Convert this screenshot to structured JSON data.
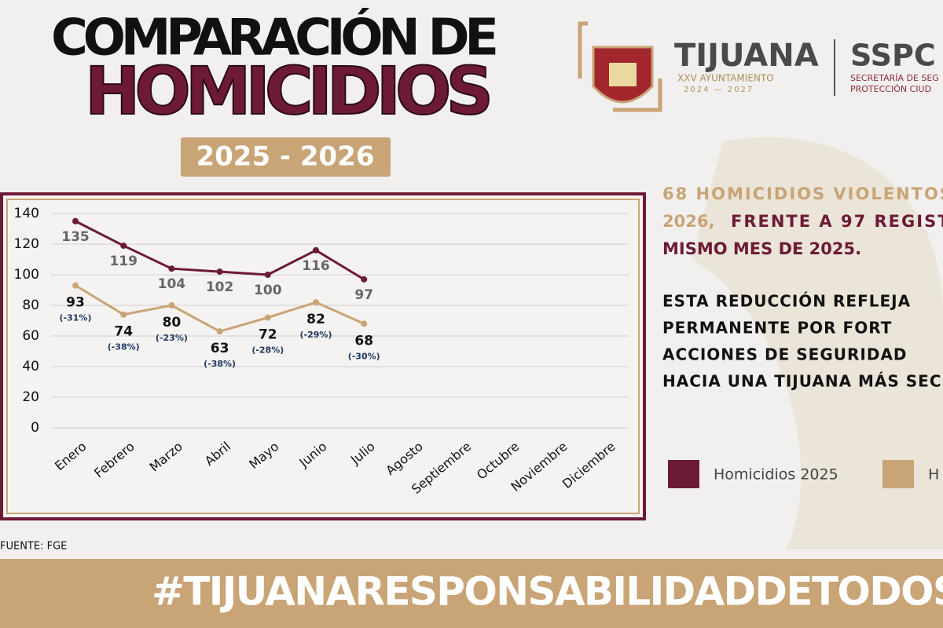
{
  "header": {
    "title_line1": "COMPARACIÓN DE",
    "title_line2": "HOMICIDIOS",
    "years": "2025 - 2026"
  },
  "logos": {
    "city": "TIJUANA",
    "council": "XXV AYUNTAMIENTO",
    "term": "2024 — 2027",
    "agency": "SSPC",
    "agency_line1": "SECRETARÍA DE SEG",
    "agency_line2": "PROTECCIÓN CIUD"
  },
  "text": {
    "line1a": "68 HOMICIDIOS VIOLENTOS",
    "line2a": "2026,",
    "line2b": "FRENTE A 97 REGIST",
    "line3": "MISMO MES DE 2025.",
    "para2": [
      "ESTA REDUCCIÓN REFLEJA",
      "PERMANENTE POR FORT",
      "ACCIONES DE SEGURIDAD",
      "HACIA UNA TIJUANA MÁS SEC"
    ]
  },
  "source": "FUENTE: FGE",
  "hashtag": "#TIJUANARESPONSABILIDADDETODOS",
  "chart_data": {
    "type": "line",
    "categories": [
      "Enero",
      "Febrero",
      "Marzo",
      "Abril",
      "Mayo",
      "Junio",
      "Julio",
      "Agosto",
      "Septiembre",
      "Octubre",
      "Noviembre",
      "Diciembre"
    ],
    "series": [
      {
        "name": "Homicidios 2025",
        "color": "#6d1a36",
        "values": [
          135,
          119,
          104,
          102,
          100,
          116,
          97,
          null,
          null,
          null,
          null,
          null
        ]
      },
      {
        "name": "H",
        "color": "#c8a476",
        "values": [
          93,
          74,
          80,
          63,
          72,
          82,
          68,
          null,
          null,
          null,
          null,
          null
        ],
        "change_labels": [
          "(-31%)",
          "(-38%)",
          "(-23%)",
          "(-38%)",
          "(-28%)",
          "(-29%)",
          "(-30%)"
        ]
      }
    ],
    "ylim": [
      0,
      140
    ],
    "yticks": [
      0,
      20,
      40,
      60,
      80,
      100,
      120,
      140
    ],
    "grid": true
  }
}
